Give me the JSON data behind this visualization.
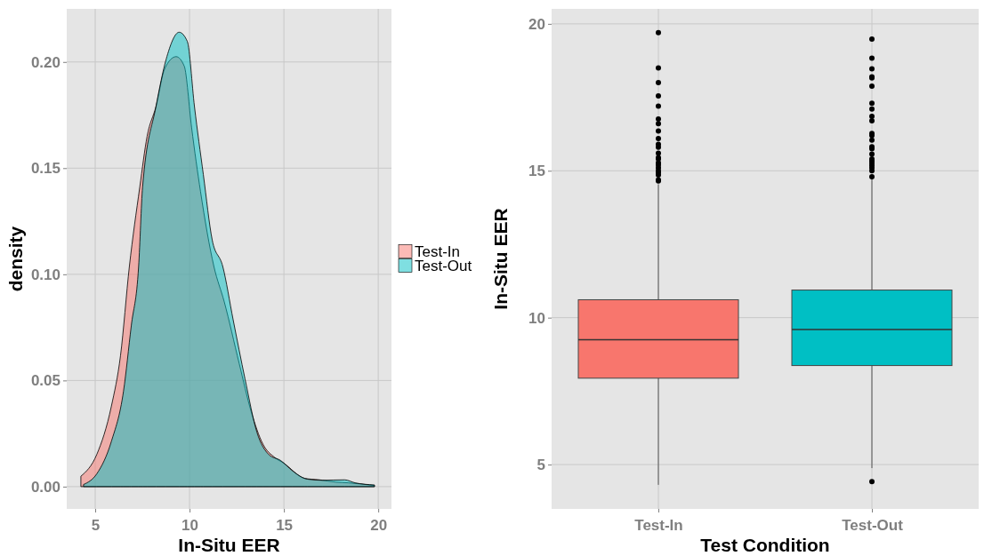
{
  "chart_data": [
    {
      "type": "area",
      "xlabel": "In-Situ EER",
      "ylabel": "density",
      "xlim": [
        3.49,
        20.7
      ],
      "ylim": [
        -0.0105,
        0.225
      ],
      "xticks": [
        5,
        10,
        15,
        20
      ],
      "yticks": [
        {
          "value": 0,
          "label": "0.00"
        },
        {
          "value": 0.05,
          "label": "0.05"
        },
        {
          "value": 0.1,
          "label": "0.10"
        },
        {
          "value": 0.15,
          "label": "0.15"
        },
        {
          "value": 0.2,
          "label": "0.20"
        }
      ],
      "grid": true,
      "legend": "right",
      "series": [
        {
          "name": "Test-In",
          "color": "#f8766d",
          "x": [
            4.24,
            5.08,
            5.86,
            6.34,
            6.81,
            7.36,
            7.75,
            8.22,
            8.69,
            9.29,
            9.72,
            10.11,
            10.58,
            11.29,
            11.84,
            12.63,
            13.26,
            13.89,
            14.52,
            15.0,
            16.1,
            16.88,
            17.77,
            18.4,
            19.8
          ],
          "values": [
            0.0049,
            0.0151,
            0.038,
            0.0617,
            0.1037,
            0.141,
            0.165,
            0.179,
            0.197,
            0.2025,
            0.198,
            0.169,
            0.139,
            0.1037,
            0.087,
            0.058,
            0.0355,
            0.02,
            0.0137,
            0.011,
            0.0039,
            0.0032,
            0.0021,
            0.0018,
            0.0005
          ]
        },
        {
          "name": "Test-Out",
          "color": "#00bfc4",
          "x": [
            4.38,
            5.08,
            5.86,
            6.5,
            6.91,
            7.3,
            7.51,
            8.22,
            8.76,
            9.45,
            9.88,
            10.26,
            10.73,
            11.2,
            11.76,
            12.31,
            12.94,
            13.57,
            14.2,
            14.83,
            15.46,
            16.25,
            17.04,
            18.22,
            18.77,
            19.8
          ],
          "values": [
            0.001,
            0.006,
            0.0214,
            0.045,
            0.0757,
            0.1037,
            0.141,
            0.179,
            0.2013,
            0.214,
            0.2097,
            0.179,
            0.147,
            0.1162,
            0.1037,
            0.0786,
            0.0507,
            0.0256,
            0.0151,
            0.0123,
            0.0074,
            0.0035,
            0.003,
            0.0032,
            0.0018,
            0.0008
          ]
        }
      ]
    },
    {
      "type": "box",
      "xlabel": "Test Condition",
      "ylabel": "In-Situ EER",
      "categories": [
        "Test-In",
        "Test-Out"
      ],
      "ylim": [
        3.49,
        20.51
      ],
      "yticks": [
        5,
        10,
        15,
        20
      ],
      "grid": true,
      "colors": [
        "#f8766d",
        "#00bfc4"
      ],
      "boxes": [
        {
          "low": 4.31,
          "q1": 7.94,
          "median": 9.25,
          "q3": 10.61,
          "high": 14.54,
          "outliers": [
            14.65,
            14.69,
            14.86,
            14.94,
            15.0,
            15.1,
            15.2,
            15.27,
            15.4,
            15.45,
            15.6,
            15.8,
            15.9,
            16.1,
            16.35,
            16.6,
            16.76,
            17.2,
            17.55,
            18.0,
            18.5,
            19.7
          ]
        },
        {
          "low": 4.88,
          "q1": 8.37,
          "median": 9.6,
          "q3": 10.94,
          "high": 14.75,
          "outliers": [
            4.42,
            14.8,
            15.0,
            15.1,
            15.18,
            15.26,
            15.33,
            15.4,
            15.57,
            15.75,
            15.82,
            16.04,
            16.2,
            16.27,
            16.7,
            16.85,
            17.1,
            17.3,
            17.88,
            18.16,
            18.2,
            18.47,
            18.83,
            19.48
          ]
        }
      ]
    }
  ]
}
